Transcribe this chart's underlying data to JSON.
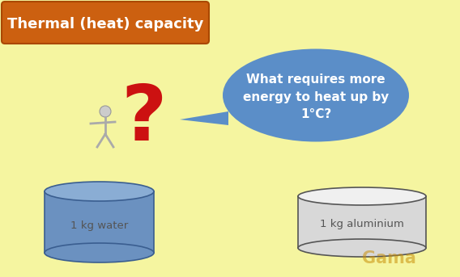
{
  "background_color": "#F5F5A0",
  "title_text": "Thermal (heat) capacity",
  "title_bg_color": "#CC6010",
  "title_text_color": "#FFFFFF",
  "bubble_text": "What requires more\nenergy to heat up by\n1°C?",
  "bubble_color": "#5B8EC8",
  "bubble_text_color": "#FFFFFF",
  "water_label": "1 kg water",
  "aluminium_label": "1 kg aluminium",
  "water_color_top": "#8AADD4",
  "water_color_body": "#6B91C0",
  "aluminium_color_top": "#F0F0F0",
  "aluminium_color_body": "#D8D8D8",
  "label_color": "#555555",
  "watermark": "Gama",
  "fig_w": 5.68,
  "fig_h": 3.43,
  "dpi": 100
}
